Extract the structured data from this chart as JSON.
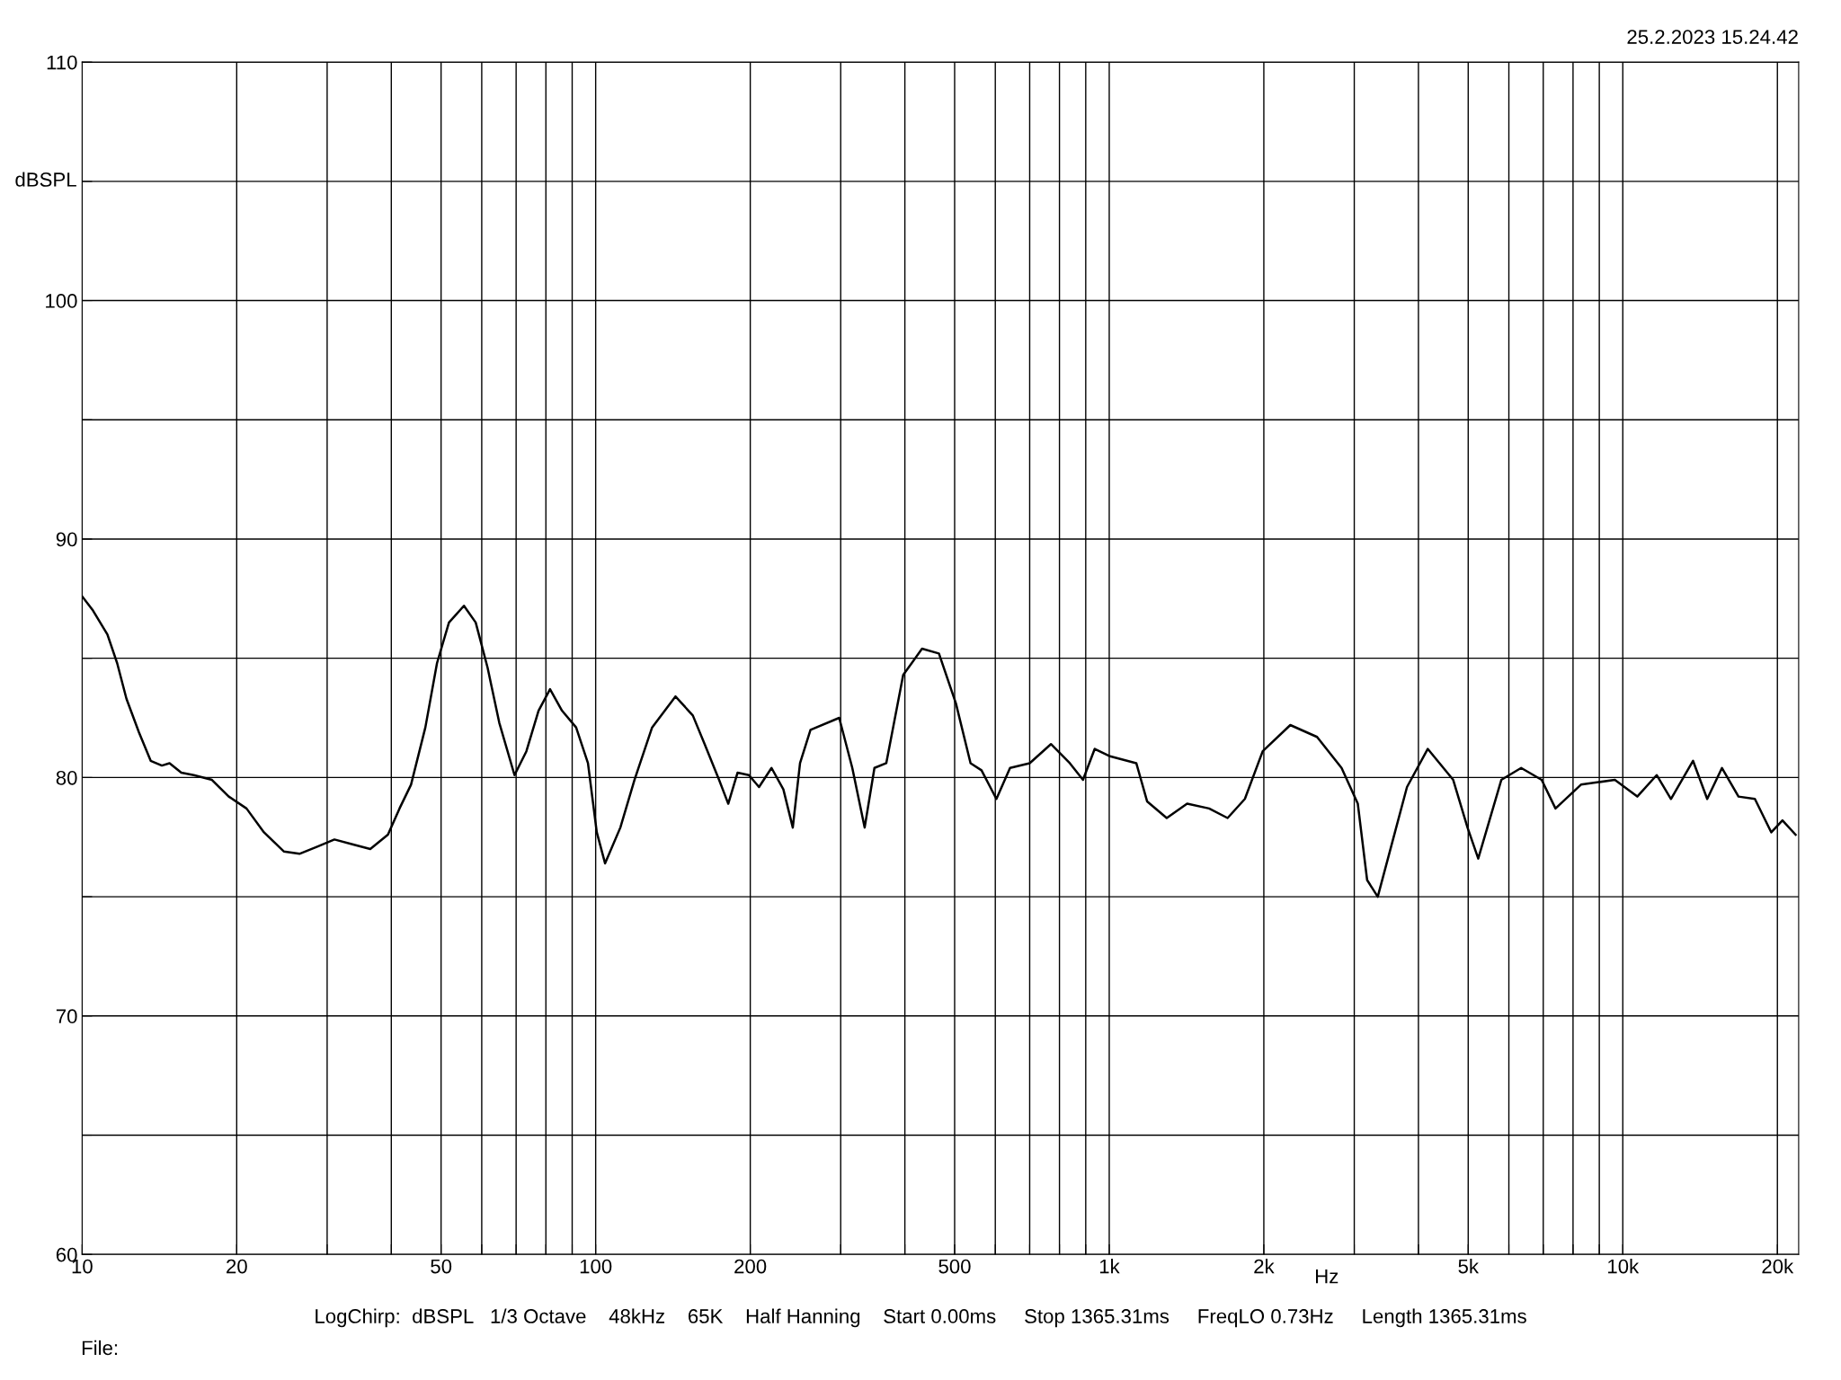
{
  "chart_data": {
    "type": "line",
    "xlabel": "Hz",
    "ylabel": "dBSPL",
    "annotations": [
      "25.2.2023 15.24.42",
      "LogChirp:  dBSPL   1/3 Octave    48kHz    65K    Half Hanning    Start 0.00ms     Stop 1365.31ms     FreqLO 0.73Hz     Length 1365.31ms",
      "File:"
    ],
    "log": "x",
    "grid": true,
    "legend": false,
    "marker": "none",
    "line_style": "solid",
    "xlim": [
      10,
      22000
    ],
    "ylim": [
      60,
      110
    ],
    "xticks": [
      10,
      20,
      {
        "value": 30,
        "label": null
      },
      {
        "value": 40,
        "label": null
      },
      50,
      {
        "value": 60,
        "label": null
      },
      {
        "value": 70,
        "label": null
      },
      {
        "value": 80,
        "label": null
      },
      {
        "value": 90,
        "label": null
      },
      100,
      200,
      {
        "value": 300,
        "label": null
      },
      {
        "value": 400,
        "label": null
      },
      500,
      {
        "value": 600,
        "label": null
      },
      {
        "value": 700,
        "label": null
      },
      {
        "value": 800,
        "label": null
      },
      {
        "value": 900,
        "label": null
      },
      {
        "value": 1000,
        "label": "1k"
      },
      {
        "value": 2000,
        "label": "2k"
      },
      {
        "value": 3000,
        "label": null
      },
      {
        "value": 4000,
        "label": null
      },
      {
        "value": 5000,
        "label": "5k"
      },
      {
        "value": 6000,
        "label": null
      },
      {
        "value": 7000,
        "label": null
      },
      {
        "value": 8000,
        "label": null
      },
      {
        "value": 9000,
        "label": null
      },
      {
        "value": 10000,
        "label": "10k"
      },
      {
        "value": 20000,
        "label": "20k"
      }
    ],
    "yticks": [
      60,
      {
        "value": 65,
        "label": null
      },
      70,
      {
        "value": 75,
        "label": null
      },
      80,
      {
        "value": 85,
        "label": null
      },
      90,
      {
        "value": 95,
        "label": null
      },
      100,
      {
        "value": 105,
        "label": null
      },
      110
    ],
    "x": [
      10,
      10.5,
      11.2,
      11.7,
      12.2,
      12.9,
      13.6,
      14.3,
      14.8,
      15.6,
      16.5,
      17.9,
      19.3,
      20.9,
      22.6,
      24.7,
      26.5,
      28.7,
      31,
      33.6,
      36.4,
      39.4,
      41.5,
      43.7,
      46.6,
      49.1,
      51.8,
      55.4,
      58.4,
      61.6,
      64.9,
      69.5,
      73.3,
      77.4,
      81.5,
      86,
      91.6,
      96.6,
      100.5,
      104.3,
      111.7,
      119,
      128.8,
      143,
      154.6,
      163,
      173.9,
      181.2,
      188.9,
      198.8,
      208,
      220,
      232,
      242,
      250,
      262,
      298,
      316,
      334,
      349,
      368,
      397,
      432,
      466,
      503,
      537,
      564,
      603,
      641,
      700,
      770,
      838,
      889,
      937,
      1000,
      1129,
      1185,
      1294,
      1418,
      1565,
      1700,
      1837,
      1990,
      2252,
      2539,
      2834,
      3048,
      3178,
      3333,
      3600,
      3800,
      4170,
      4675,
      4985,
      5230,
      5800,
      6340,
      6950,
      7395,
      8290,
      9650,
      10670,
      11640,
      12410,
      13700,
      14600,
      15600,
      16800,
      18080,
      19460,
      20460,
      21700
    ],
    "series": [
      {
        "color": "#000000",
        "values": [
          87.6,
          87.0,
          86.0,
          84.8,
          83.3,
          81.9,
          80.7,
          80.5,
          80.6,
          80.2,
          80.1,
          79.9,
          79.2,
          78.7,
          77.7,
          76.9,
          76.8,
          77.1,
          77.4,
          77.2,
          77.0,
          77.6,
          78.7,
          79.7,
          82.1,
          84.8,
          86.5,
          87.2,
          86.5,
          84.6,
          82.3,
          80.1,
          81.1,
          82.8,
          83.7,
          82.8,
          82.1,
          80.6,
          77.7,
          76.4,
          77.9,
          79.9,
          82.1,
          83.4,
          82.6,
          81.4,
          79.9,
          78.9,
          80.2,
          80.1,
          79.6,
          80.4,
          79.5,
          77.9,
          80.6,
          82.0,
          82.5,
          80.4,
          77.9,
          80.4,
          80.6,
          84.3,
          85.4,
          85.2,
          83.1,
          80.6,
          80.3,
          79.1,
          80.4,
          80.6,
          81.4,
          80.6,
          79.9,
          81.2,
          80.9,
          80.6,
          79.0,
          78.3,
          78.9,
          78.7,
          78.3,
          79.1,
          81.1,
          82.2,
          81.7,
          80.4,
          78.9,
          75.7,
          75.0,
          77.7,
          79.6,
          81.2,
          79.9,
          77.9,
          76.6,
          79.9,
          80.4,
          79.9,
          78.7,
          79.7,
          79.9,
          79.2,
          80.1,
          79.1,
          80.7,
          79.1,
          80.4,
          79.2,
          79.1,
          77.7,
          78.2,
          77.6
        ]
      }
    ]
  }
}
